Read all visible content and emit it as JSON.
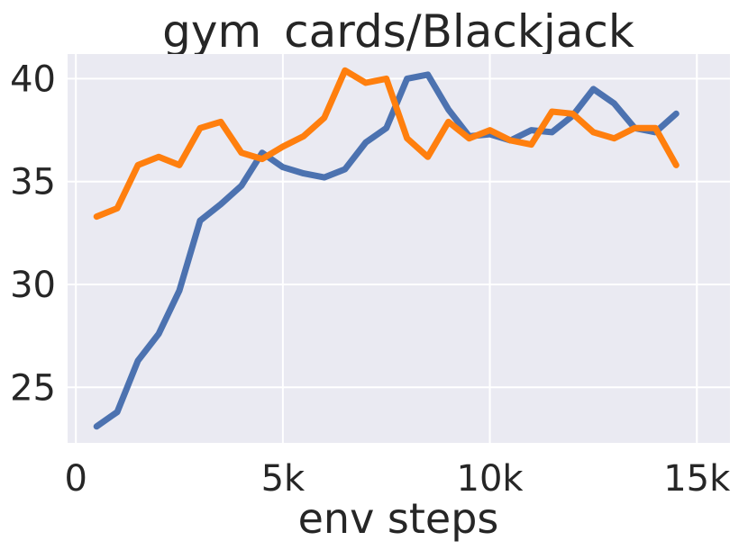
{
  "chart_data": {
    "type": "line",
    "title": "gym_cards/Blackjack",
    "xlabel": "env steps",
    "ylabel": "",
    "xlim": [
      -200,
      15800
    ],
    "ylim": [
      22.3,
      41.2
    ],
    "grid": true,
    "background": "#eaeaf2",
    "x_ticks": [
      {
        "value": 0,
        "label": "0"
      },
      {
        "value": 5000,
        "label": "5k"
      },
      {
        "value": 10000,
        "label": "10k"
      },
      {
        "value": 15000,
        "label": "15k"
      }
    ],
    "y_ticks": [
      {
        "value": 25,
        "label": "25"
      },
      {
        "value": 30,
        "label": "30"
      },
      {
        "value": 35,
        "label": "35"
      },
      {
        "value": 40,
        "label": "40"
      }
    ],
    "series": [
      {
        "color": "#4c72b0",
        "x": [
          500,
          1000,
          1500,
          2000,
          2500,
          3000,
          3500,
          4000,
          4500,
          5000,
          5500,
          6000,
          6500,
          7000,
          7500,
          8000,
          8500,
          9000,
          9500,
          10000,
          10500,
          11000,
          11500,
          12000,
          12500,
          13000,
          13500,
          14000,
          14500
        ],
        "y": [
          23.1,
          23.8,
          26.3,
          27.6,
          29.7,
          33.1,
          33.9,
          34.8,
          36.4,
          35.7,
          35.4,
          35.2,
          35.6,
          36.9,
          37.6,
          40.0,
          40.2,
          38.5,
          37.2,
          37.3,
          37.0,
          37.5,
          37.4,
          38.2,
          39.5,
          38.8,
          37.6,
          37.4,
          38.3
        ]
      },
      {
        "color": "#ff7f0e",
        "x": [
          500,
          1000,
          1500,
          2000,
          2500,
          3000,
          3500,
          4000,
          4500,
          5000,
          5500,
          6000,
          6500,
          7000,
          7500,
          8000,
          8500,
          9000,
          9500,
          10000,
          10500,
          11000,
          11500,
          12000,
          12500,
          13000,
          13500,
          14000,
          14500
        ],
        "y": [
          33.3,
          33.7,
          35.8,
          36.2,
          35.8,
          37.6,
          37.9,
          36.4,
          36.1,
          36.7,
          37.2,
          38.1,
          40.4,
          39.8,
          40.0,
          37.1,
          36.2,
          37.9,
          37.1,
          37.5,
          37.0,
          36.8,
          38.4,
          38.3,
          37.4,
          37.1,
          37.6,
          37.6,
          35.8
        ]
      }
    ]
  }
}
